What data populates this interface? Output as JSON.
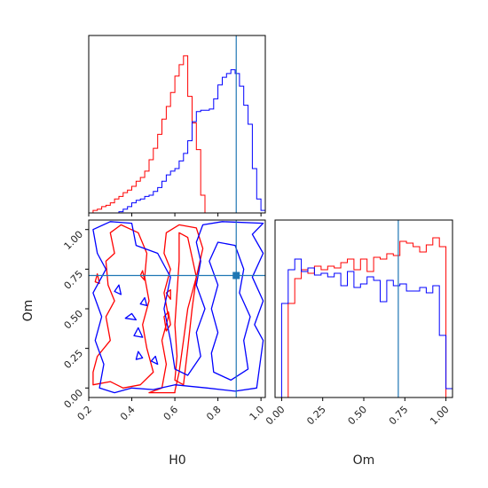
{
  "chart_data": [
    {
      "panel": "H0 marginal",
      "type": "area",
      "xlim": [
        0.2,
        1.02
      ],
      "xticks": [
        0.2,
        0.4,
        0.6,
        0.8,
        1.0
      ],
      "show_tick_labels": false,
      "truth_x": 0.885,
      "bin_edges": [
        0.2,
        0.22,
        0.24,
        0.26,
        0.28,
        0.3,
        0.32,
        0.34,
        0.36,
        0.38,
        0.4,
        0.42,
        0.44,
        0.46,
        0.48,
        0.5,
        0.52,
        0.54,
        0.56,
        0.58,
        0.6,
        0.62,
        0.64,
        0.66,
        0.68,
        0.7,
        0.72,
        0.74,
        0.76,
        0.78,
        0.8,
        0.82,
        0.84,
        0.86,
        0.88,
        0.9,
        0.92,
        0.94,
        0.96,
        0.98,
        1.0,
        1.02
      ],
      "series": [
        {
          "color": "#ff0000",
          "values": [
            0,
            2,
            3,
            5,
            6,
            8,
            11,
            13,
            16,
            18,
            21,
            25,
            28,
            33,
            42,
            51,
            62,
            74,
            84,
            95,
            108,
            117,
            124,
            92,
            71,
            50,
            14,
            0,
            0,
            0,
            0,
            0,
            0,
            0,
            0,
            0,
            0,
            0,
            0,
            0,
            0
          ]
        },
        {
          "color": "#0000ff",
          "values": [
            0,
            0,
            0,
            0,
            0,
            0,
            0,
            1,
            3,
            5,
            8,
            10,
            11,
            13,
            14,
            17,
            20,
            25,
            30,
            33,
            35,
            41,
            47,
            57,
            72,
            80,
            81,
            81,
            82,
            90,
            101,
            107,
            110,
            113,
            110,
            100,
            85,
            70,
            35,
            11,
            2
          ]
        }
      ],
      "ylim": [
        0,
        140
      ]
    },
    {
      "panel": "Om marginal",
      "type": "area",
      "xlim": [
        -0.04,
        1.04
      ],
      "xticks": [
        0.0,
        0.25,
        0.5,
        0.75,
        1.0
      ],
      "tick_labels": [
        "0.00",
        "0.25",
        "0.50",
        "0.75",
        "1.00"
      ],
      "xlabel": "Om",
      "truth_x": 0.71,
      "bin_edges": [
        -0.04,
        0.0,
        0.04,
        0.08,
        0.12,
        0.16,
        0.2,
        0.24,
        0.28,
        0.32,
        0.36,
        0.4,
        0.44,
        0.48,
        0.52,
        0.56,
        0.6,
        0.64,
        0.68,
        0.72,
        0.76,
        0.8,
        0.84,
        0.88,
        0.92,
        0.96,
        1.0,
        1.04
      ],
      "series": [
        {
          "color": "#ff0000",
          "values": [
            0,
            0,
            53,
            67,
            72,
            70,
            74,
            72,
            74,
            73,
            76,
            78,
            72,
            78,
            71,
            79,
            78,
            81,
            80,
            88,
            87,
            85,
            82,
            86,
            90,
            85,
            0
          ]
        },
        {
          "color": "#0000ff",
          "values": [
            0,
            53,
            72,
            78,
            71,
            73,
            69,
            70,
            68,
            70,
            63,
            71,
            62,
            64,
            68,
            66,
            54,
            66,
            63,
            64,
            60,
            60,
            62,
            59,
            63,
            35,
            5
          ]
        }
      ],
      "ylim": [
        0,
        100
      ]
    },
    {
      "panel": "H0 vs Om joint",
      "type": "contour",
      "xlim": [
        0.2,
        1.02
      ],
      "ylim": [
        -0.06,
        1.06
      ],
      "xlabel": "H0",
      "ylabel": "Om",
      "xticks": [
        0.2,
        0.4,
        0.6,
        0.8,
        1.0
      ],
      "xtick_labels": [
        "0.2",
        "0.4",
        "0.6",
        "0.8",
        "1.0"
      ],
      "yticks": [
        0.0,
        0.25,
        0.5,
        0.75,
        1.0
      ],
      "ytick_labels": [
        "0.00",
        "0.25",
        "0.50",
        "0.75",
        "1.00"
      ],
      "truth": {
        "x": 0.885,
        "y": 0.71
      },
      "series": [
        {
          "color": "#ff0000",
          "contours": [
            [
              [
                0.22,
                0.02
              ],
              [
                0.3,
                0.04
              ],
              [
                0.36,
                0.0
              ],
              [
                0.44,
                0.02
              ],
              [
                0.5,
                0.1
              ],
              [
                0.47,
                0.25
              ],
              [
                0.45,
                0.4
              ],
              [
                0.48,
                0.55
              ],
              [
                0.46,
                0.7
              ],
              [
                0.47,
                0.85
              ],
              [
                0.43,
                0.98
              ],
              [
                0.35,
                1.03
              ],
              [
                0.3,
                0.98
              ],
              [
                0.32,
                0.85
              ],
              [
                0.28,
                0.8
              ],
              [
                0.29,
                0.65
              ],
              [
                0.32,
                0.55
              ],
              [
                0.28,
                0.45
              ],
              [
                0.3,
                0.3
              ],
              [
                0.24,
                0.2
              ],
              [
                0.22,
                0.1
              ]
            ],
            [
              [
                0.6,
                -0.02
              ],
              [
                0.62,
                0.1
              ],
              [
                0.64,
                0.3
              ],
              [
                0.66,
                0.5
              ],
              [
                0.7,
                0.7
              ],
              [
                0.73,
                0.88
              ],
              [
                0.7,
                1.01
              ],
              [
                0.62,
                1.03
              ],
              [
                0.56,
                0.98
              ],
              [
                0.55,
                0.85
              ],
              [
                0.58,
                0.75
              ],
              [
                0.55,
                0.6
              ],
              [
                0.57,
                0.45
              ],
              [
                0.54,
                0.3
              ],
              [
                0.56,
                0.15
              ],
              [
                0.54,
                0.0
              ],
              [
                0.48,
                -0.03
              ],
              [
                0.6,
                -0.03
              ]
            ],
            [
              [
                0.64,
                0.02
              ],
              [
                0.66,
                0.25
              ],
              [
                0.68,
                0.5
              ],
              [
                0.7,
                0.7
              ],
              [
                0.66,
                0.95
              ],
              [
                0.62,
                0.98
              ],
              [
                0.62,
                0.8
              ],
              [
                0.61,
                0.6
              ],
              [
                0.6,
                0.4
              ],
              [
                0.61,
                0.2
              ],
              [
                0.6,
                0.05
              ]
            ],
            [
              [
                0.55,
                0.45
              ],
              [
                0.57,
                0.48
              ],
              [
                0.58,
                0.4
              ],
              [
                0.56,
                0.36
              ]
            ],
            [
              [
                0.56,
                0.6
              ],
              [
                0.58,
                0.62
              ],
              [
                0.58,
                0.56
              ]
            ],
            [
              [
                0.23,
                0.67
              ],
              [
                0.24,
                0.72
              ],
              [
                0.25,
                0.66
              ]
            ],
            [
              [
                0.44,
                0.71
              ],
              [
                0.45,
                0.74
              ],
              [
                0.46,
                0.68
              ]
            ]
          ]
        },
        {
          "color": "#0000ff",
          "contours": [
            [
              [
                0.25,
                0.0
              ],
              [
                0.32,
                -0.03
              ],
              [
                0.4,
                0.0
              ],
              [
                0.5,
                -0.01
              ],
              [
                0.6,
                0.02
              ],
              [
                0.75,
                0.0
              ],
              [
                0.88,
                -0.02
              ],
              [
                0.98,
                0.0
              ],
              [
                1.01,
                0.3
              ],
              [
                0.97,
                0.4
              ],
              [
                1.01,
                0.55
              ],
              [
                0.96,
                0.7
              ],
              [
                1.01,
                0.85
              ],
              [
                0.96,
                0.97
              ],
              [
                1.01,
                1.04
              ],
              [
                0.82,
                1.05
              ],
              [
                0.73,
                1.03
              ],
              [
                0.7,
                0.92
              ],
              [
                0.72,
                0.8
              ],
              [
                0.7,
                0.65
              ],
              [
                0.74,
                0.5
              ],
              [
                0.7,
                0.35
              ],
              [
                0.72,
                0.2
              ],
              [
                0.66,
                0.08
              ],
              [
                0.6,
                0.12
              ],
              [
                0.58,
                0.3
              ],
              [
                0.55,
                0.5
              ],
              [
                0.58,
                0.7
              ],
              [
                0.52,
                0.85
              ],
              [
                0.42,
                0.9
              ],
              [
                0.4,
                1.04
              ],
              [
                0.3,
                1.05
              ],
              [
                0.22,
                1.0
              ],
              [
                0.24,
                0.85
              ],
              [
                0.28,
                0.75
              ],
              [
                0.22,
                0.6
              ],
              [
                0.26,
                0.45
              ],
              [
                0.23,
                0.3
              ],
              [
                0.27,
                0.15
              ]
            ],
            [
              [
                0.78,
                0.1
              ],
              [
                0.86,
                0.05
              ],
              [
                0.94,
                0.12
              ],
              [
                0.92,
                0.3
              ],
              [
                0.95,
                0.45
              ],
              [
                0.9,
                0.6
              ],
              [
                0.92,
                0.75
              ],
              [
                0.88,
                0.9
              ],
              [
                0.8,
                0.92
              ],
              [
                0.76,
                0.8
              ],
              [
                0.8,
                0.65
              ],
              [
                0.77,
                0.5
              ],
              [
                0.8,
                0.35
              ],
              [
                0.77,
                0.22
              ]
            ],
            [
              [
                0.41,
                0.33
              ],
              [
                0.43,
                0.38
              ],
              [
                0.45,
                0.32
              ]
            ],
            [
              [
                0.37,
                0.44
              ],
              [
                0.4,
                0.47
              ],
              [
                0.42,
                0.43
              ]
            ],
            [
              [
                0.42,
                0.18
              ],
              [
                0.43,
                0.23
              ],
              [
                0.45,
                0.19
              ]
            ],
            [
              [
                0.49,
                0.17
              ],
              [
                0.51,
                0.2
              ],
              [
                0.52,
                0.15
              ]
            ],
            [
              [
                0.32,
                0.61
              ],
              [
                0.34,
                0.65
              ],
              [
                0.35,
                0.59
              ]
            ],
            [
              [
                0.44,
                0.53
              ],
              [
                0.46,
                0.57
              ],
              [
                0.47,
                0.52
              ]
            ]
          ]
        }
      ]
    }
  ]
}
